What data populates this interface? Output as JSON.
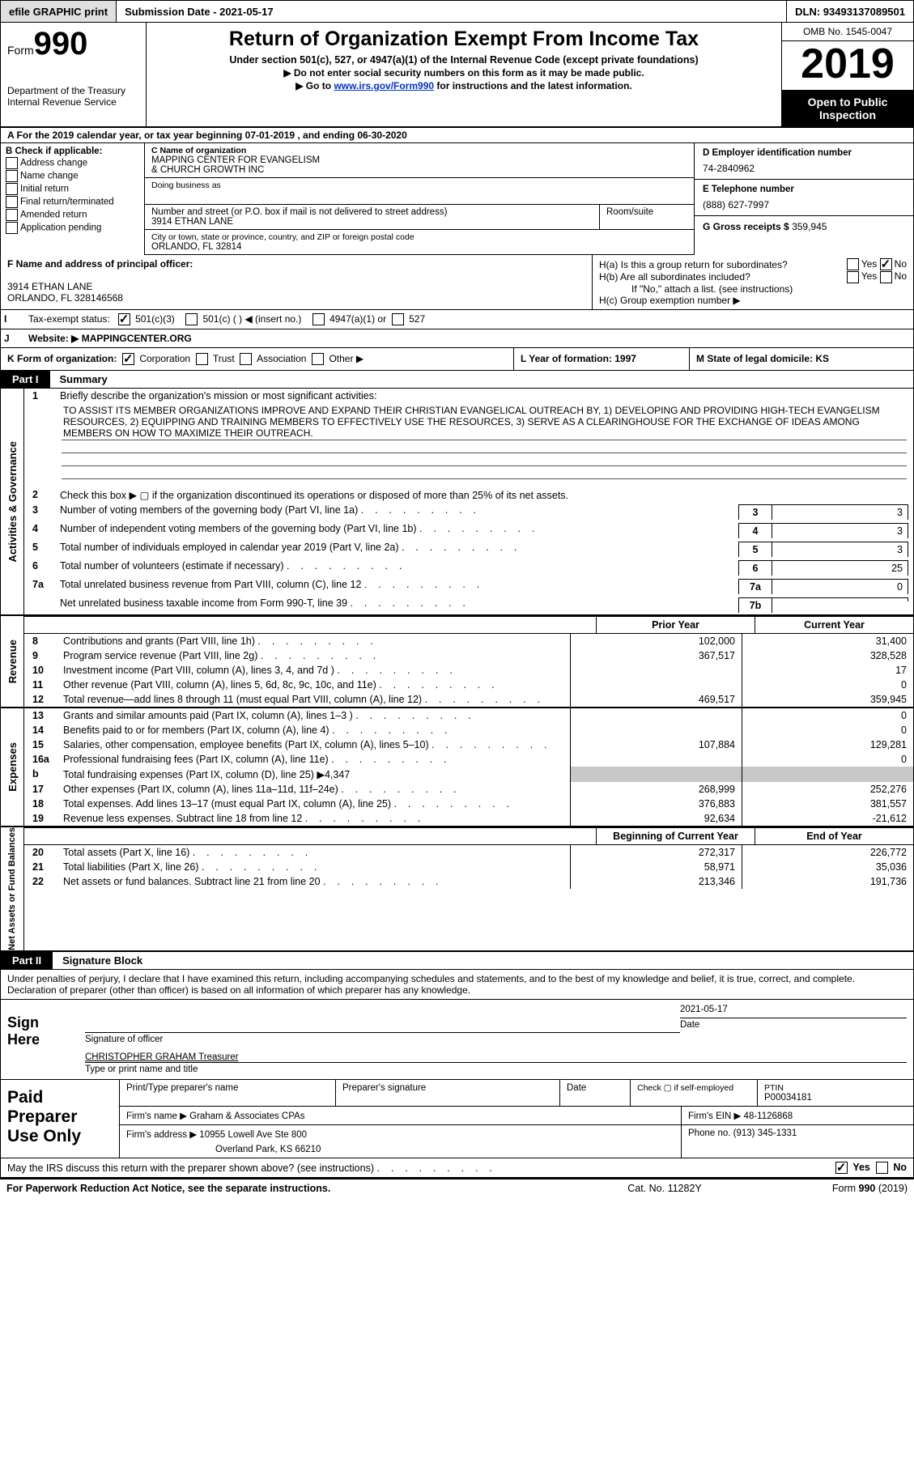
{
  "top": {
    "efile": "efile GRAPHIC print",
    "submission": "Submission Date - 2021-05-17",
    "dln": "DLN: 93493137089501"
  },
  "header": {
    "formWord": "Form",
    "formNum": "990",
    "dept1": "Department of the Treasury",
    "dept2": "Internal Revenue Service",
    "title": "Return of Organization Exempt From Income Tax",
    "sub": "Under section 501(c), 527, or 4947(a)(1) of the Internal Revenue Code (except private foundations)",
    "note1": "▶ Do not enter social security numbers on this form as it may be made public.",
    "note2a": "▶ Go to ",
    "note2link": "www.irs.gov/Form990",
    "note2b": " for instructions and the latest information.",
    "omb": "OMB No. 1545-0047",
    "year": "2019",
    "open": "Open to Public Inspection"
  },
  "rowA": "A For the 2019 calendar year, or tax year beginning 07-01-2019    , and ending 06-30-2020",
  "boxB": {
    "lbl": "B Check if applicable:",
    "opts": [
      "Address change",
      "Name change",
      "Initial return",
      "Final return/terminated",
      "Amended return",
      "Application pending"
    ]
  },
  "boxC": {
    "nameLbl": "C Name of organization",
    "name1": "MAPPING CENTER FOR EVANGELISM",
    "name2": "& CHURCH GROWTH INC",
    "dba": "Doing business as",
    "streetLbl": "Number and street (or P.O. box if mail is not delivered to street address)",
    "roomLbl": "Room/suite",
    "street": "3914 ETHAN LANE",
    "cityLbl": "City or town, state or province, country, and ZIP or foreign postal code",
    "city": "ORLANDO, FL  32814"
  },
  "boxD": {
    "lbl": "D Employer identification number",
    "val": "74-2840962"
  },
  "boxE": {
    "lbl": "E Telephone number",
    "val": "(888) 627-7997"
  },
  "boxG": {
    "lbl": "G Gross receipts $",
    "val": "359,945"
  },
  "boxF": {
    "lbl": "F  Name and address of principal officer:",
    "line1": "3914 ETHAN LANE",
    "line2": "ORLANDO, FL  328146568"
  },
  "boxH": {
    "a": "H(a)  Is this a group return for subordinates?",
    "b": "H(b)  Are all subordinates included?",
    "bnote": "If \"No,\" attach a list. (see instructions)",
    "c": "H(c)  Group exemption number ▶",
    "yes": "Yes",
    "no": "No"
  },
  "rowI": {
    "lbl": "I",
    "text": "Tax-exempt status:",
    "o1": "501(c)(3)",
    "o2": "501(c) (  ) ◀ (insert no.)",
    "o3": "4947(a)(1) or",
    "o4": "527"
  },
  "rowJ": {
    "lbl": "J",
    "text": "Website: ▶",
    "val": "MAPPINGCENTER.ORG"
  },
  "rowK": {
    "text": "K Form of organization:",
    "o1": "Corporation",
    "o2": "Trust",
    "o3": "Association",
    "o4": "Other ▶"
  },
  "rowL": "L Year of formation: 1997",
  "rowM": "M State of legal domicile: KS",
  "part1": {
    "tag": "Part I",
    "title": "Summary"
  },
  "actgov": {
    "vert": "Activities & Governance",
    "l1": "Briefly describe the organization's mission or most significant activities:",
    "mission": "TO ASSIST ITS MEMBER ORGANIZATIONS IMPROVE AND EXPAND THEIR CHRISTIAN EVANGELICAL OUTREACH BY, 1) DEVELOPING AND PROVIDING HIGH-TECH EVANGELISM RESOURCES, 2) EQUIPPING AND TRAINING MEMBERS TO EFFECTIVELY USE THE RESOURCES, 3) SERVE AS A CLEARINGHOUSE FOR THE EXCHANGE OF IDEAS AMONG MEMBERS ON HOW TO MAXIMIZE THEIR OUTREACH.",
    "l2": "Check this box ▶ ▢  if the organization discontinued its operations or disposed of more than 25% of its net assets.",
    "rows": [
      {
        "n": "3",
        "d": "Number of voting members of the governing body (Part VI, line 1a)",
        "b": "3",
        "v": "3"
      },
      {
        "n": "4",
        "d": "Number of independent voting members of the governing body (Part VI, line 1b)",
        "b": "4",
        "v": "3"
      },
      {
        "n": "5",
        "d": "Total number of individuals employed in calendar year 2019 (Part V, line 2a)",
        "b": "5",
        "v": "3"
      },
      {
        "n": "6",
        "d": "Total number of volunteers (estimate if necessary)",
        "b": "6",
        "v": "25"
      },
      {
        "n": "7a",
        "d": "Total unrelated business revenue from Part VIII, column (C), line 12",
        "b": "7a",
        "v": "0"
      },
      {
        "n": "",
        "d": "Net unrelated business taxable income from Form 990-T, line 39",
        "b": "7b",
        "v": ""
      }
    ],
    "l7b_n": "b"
  },
  "rev": {
    "vert": "Revenue",
    "hprior": "Prior Year",
    "hcurr": "Current Year",
    "rows": [
      {
        "n": "8",
        "d": "Contributions and grants (Part VIII, line 1h)",
        "p": "102,000",
        "c": "31,400"
      },
      {
        "n": "9",
        "d": "Program service revenue (Part VIII, line 2g)",
        "p": "367,517",
        "c": "328,528"
      },
      {
        "n": "10",
        "d": "Investment income (Part VIII, column (A), lines 3, 4, and 7d )",
        "p": "",
        "c": "17"
      },
      {
        "n": "11",
        "d": "Other revenue (Part VIII, column (A), lines 5, 6d, 8c, 9c, 10c, and 11e)",
        "p": "",
        "c": "0"
      },
      {
        "n": "12",
        "d": "Total revenue—add lines 8 through 11 (must equal Part VIII, column (A), line 12)",
        "p": "469,517",
        "c": "359,945"
      }
    ]
  },
  "exp": {
    "vert": "Expenses",
    "rows": [
      {
        "n": "13",
        "d": "Grants and similar amounts paid (Part IX, column (A), lines 1–3 )",
        "p": "",
        "c": "0"
      },
      {
        "n": "14",
        "d": "Benefits paid to or for members (Part IX, column (A), line 4)",
        "p": "",
        "c": "0"
      },
      {
        "n": "15",
        "d": "Salaries, other compensation, employee benefits (Part IX, column (A), lines 5–10)",
        "p": "107,884",
        "c": "129,281"
      },
      {
        "n": "16a",
        "d": "Professional fundraising fees (Part IX, column (A), line 11e)",
        "p": "",
        "c": "0"
      },
      {
        "n": "b",
        "d": "Total fundraising expenses (Part IX, column (D), line 25) ▶4,347",
        "p": "",
        "c": "",
        "shade": true
      },
      {
        "n": "17",
        "d": "Other expenses (Part IX, column (A), lines 11a–11d, 11f–24e)",
        "p": "268,999",
        "c": "252,276"
      },
      {
        "n": "18",
        "d": "Total expenses. Add lines 13–17 (must equal Part IX, column (A), line 25)",
        "p": "376,883",
        "c": "381,557"
      },
      {
        "n": "19",
        "d": "Revenue less expenses. Subtract line 18 from line 12",
        "p": "92,634",
        "c": "-21,612"
      }
    ]
  },
  "net": {
    "vert": "Net Assets or Fund Balances",
    "hprior": "Beginning of Current Year",
    "hcurr": "End of Year",
    "rows": [
      {
        "n": "20",
        "d": "Total assets (Part X, line 16)",
        "p": "272,317",
        "c": "226,772"
      },
      {
        "n": "21",
        "d": "Total liabilities (Part X, line 26)",
        "p": "58,971",
        "c": "35,036"
      },
      {
        "n": "22",
        "d": "Net assets or fund balances. Subtract line 21 from line 20",
        "p": "213,346",
        "c": "191,736"
      }
    ]
  },
  "part2": {
    "tag": "Part II",
    "title": "Signature Block"
  },
  "sig": {
    "decl": "Under penalties of perjury, I declare that I have examined this return, including accompanying schedules and statements, and to the best of my knowledge and belief, it is true, correct, and complete. Declaration of preparer (other than officer) is based on all information of which preparer has any knowledge.",
    "signHere": "Sign Here",
    "sigOfficer": "Signature of officer",
    "date": "Date",
    "dateVal": "2021-05-17",
    "officer": "CHRISTOPHER GRAHAM  Treasurer",
    "typeName": "Type or print name and title"
  },
  "prep": {
    "lab": "Paid Preparer Use Only",
    "r1c1": "Print/Type preparer's name",
    "r1c2": "Preparer's signature",
    "r1c3": "Date",
    "r1c4a": "Check ▢ if self-employed",
    "r1c5a": "PTIN",
    "r1c5b": "P00034181",
    "r2a": "Firm's name    ▶",
    "r2b": "Graham & Associates CPAs",
    "r2c": "Firm's EIN ▶",
    "r2d": "48-1126868",
    "r3a": "Firm's address ▶",
    "r3b": "10955 Lowell Ave Ste 800",
    "r3b2": "Overland Park, KS  66210",
    "r3c": "Phone no.",
    "r3d": "(913) 345-1331"
  },
  "footerQ": "May the IRS discuss this return with the preparer shown above? (see instructions)",
  "footerYes": "Yes",
  "footerNo": "No",
  "final": {
    "l": "For Paperwork Reduction Act Notice, see the separate instructions.",
    "m": "Cat. No. 11282Y",
    "r": "Form 990 (2019)"
  }
}
